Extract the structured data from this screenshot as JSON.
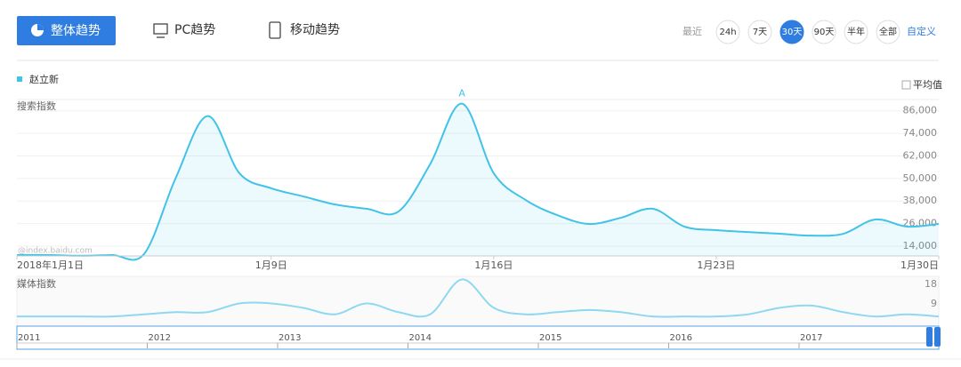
{
  "tabs": [
    "整体趋势",
    "PC趋势",
    "移动趋势"
  ],
  "range": {
    "label": "最近",
    "options": [
      "24h",
      "7天",
      "30天",
      "90天",
      "半年",
      "全部"
    ],
    "active": 2,
    "custom": "自定义"
  },
  "average_toggle": "平均值",
  "watermark": "@index.baidu.com",
  "chart_data": [
    {
      "type": "line",
      "title": "搜索指数",
      "categories": [
        "2018年1月1日",
        null,
        null,
        null,
        null,
        null,
        null,
        null,
        "1月9日",
        null,
        null,
        null,
        null,
        null,
        null,
        "1月16日",
        null,
        null,
        null,
        null,
        null,
        null,
        "1月23日",
        null,
        null,
        null,
        null,
        null,
        null,
        "1月30日"
      ],
      "series": [
        {
          "name": "赵立新",
          "color": "#41c3e8",
          "values": [
            9300,
            9300,
            8900,
            9300,
            9800,
            50400,
            83200,
            52800,
            44800,
            40500,
            36200,
            33900,
            32400,
            57600,
            89800,
            52800,
            38600,
            30500,
            25800,
            29100,
            33900,
            24400,
            22500,
            21500,
            20600,
            19600,
            20600,
            28200,
            24400,
            25800
          ]
        }
      ],
      "ylim": [
        8800,
        92000
      ],
      "yticks": [
        {
          "value": 14000,
          "label": "14,000"
        },
        {
          "value": 26000,
          "label": "26,000"
        },
        {
          "value": 38000,
          "label": "38,000"
        },
        {
          "value": 50000,
          "label": "50,000"
        },
        {
          "value": 62000,
          "label": "62,000"
        },
        {
          "value": 74000,
          "label": "74,000"
        },
        {
          "value": 86000,
          "label": "86,000"
        }
      ],
      "grid": true,
      "annotations": [
        {
          "text": "A",
          "index": 14
        }
      ]
    },
    {
      "type": "line",
      "title": "媒体指数",
      "series": [
        {
          "color": "#8fd8f0",
          "values": [
            4,
            4,
            4,
            4,
            5,
            6,
            6,
            10,
            10,
            8,
            5,
            10,
            6,
            5,
            21,
            8,
            5,
            6,
            7,
            6,
            4,
            4,
            4,
            5,
            8,
            9,
            6,
            4,
            5,
            4
          ]
        }
      ],
      "ylim": [
        0,
        22
      ],
      "yticks": [
        9,
        18
      ]
    }
  ],
  "timeline": {
    "labels": [
      "2011",
      "2012",
      "2013",
      "2014",
      "2015",
      "2016",
      "2017"
    ]
  }
}
